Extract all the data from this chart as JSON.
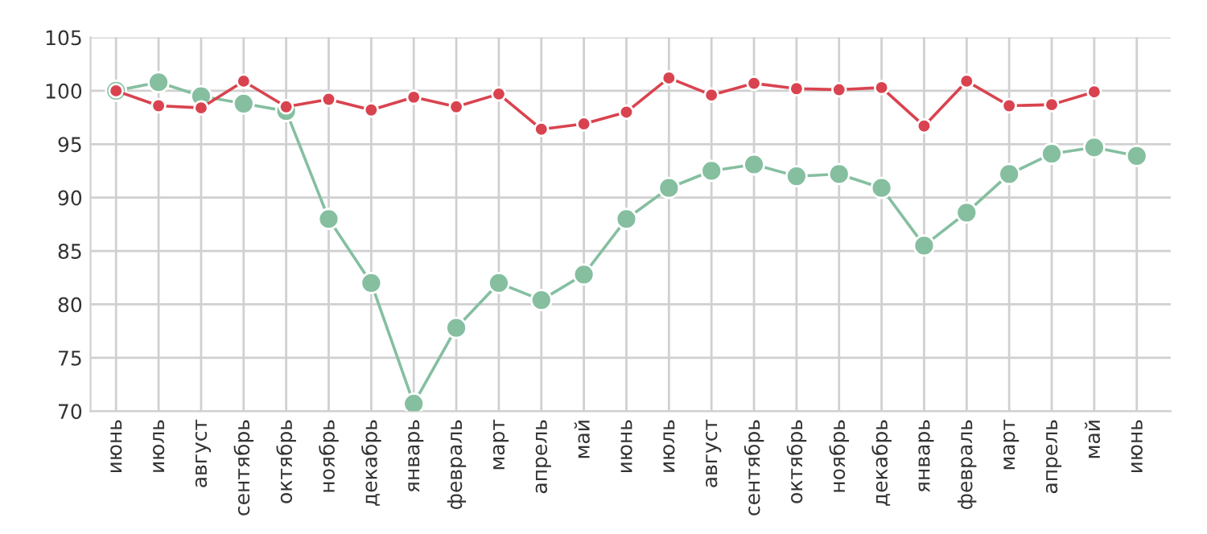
{
  "chart_data": {
    "type": "line",
    "categories": [
      "июнь",
      "июль",
      "август",
      "сентябрь",
      "октябрь",
      "ноябрь",
      "декабрь",
      "январь",
      "февраль",
      "март",
      "апрель",
      "май",
      "июнь",
      "июль",
      "август",
      "сентябрь",
      "октябрь",
      "ноябрь",
      "декабрь",
      "январь",
      "февраль",
      "март",
      "апрель",
      "май",
      "июнь"
    ],
    "series": [
      {
        "color": "#d9434f",
        "values": [
          100.0,
          98.6,
          98.4,
          100.9,
          98.5,
          99.2,
          98.2,
          99.4,
          98.5,
          99.7,
          96.4,
          96.9,
          98.0,
          101.2,
          99.6,
          100.7,
          100.2,
          100.1,
          100.3,
          96.7,
          100.9,
          98.6,
          98.7,
          99.9,
          null
        ]
      },
      {
        "color": "#85bfa0",
        "values": [
          100.0,
          100.8,
          99.5,
          98.8,
          98.1,
          88.0,
          82.0,
          70.7,
          77.8,
          82.0,
          80.4,
          82.8,
          88.0,
          90.9,
          92.5,
          93.1,
          92.0,
          92.2,
          90.9,
          85.5,
          88.6,
          92.2,
          94.1,
          94.7,
          93.9
        ]
      }
    ],
    "ylim": [
      70,
      105
    ],
    "yticks": [
      70,
      75,
      80,
      85,
      90,
      95,
      100,
      105
    ],
    "grid": true,
    "marker": "circle",
    "line_style": "solid"
  }
}
